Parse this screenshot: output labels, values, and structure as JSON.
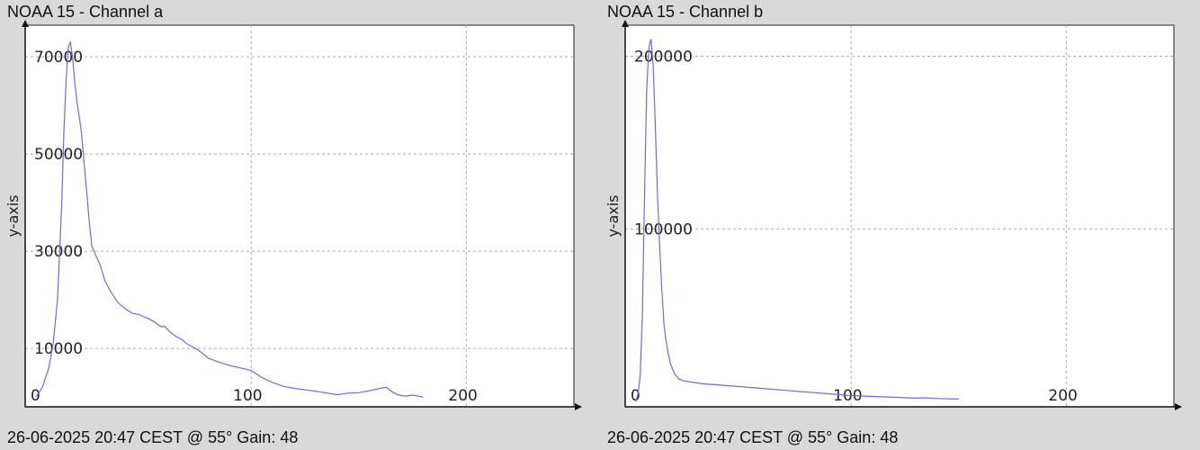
{
  "panels": [
    {
      "title": "NOAA 15 - Channel a",
      "footer": "26-06-2025 20:47 CEST @ 55° Gain: 48",
      "chart": {
        "ylabel": "y-axis",
        "xticks": [
          0,
          100,
          200
        ],
        "yticks": [
          10000,
          30000,
          50000,
          70000
        ],
        "xlim": [
          -5,
          250
        ],
        "ylim": [
          -2000,
          76500
        ]
      }
    },
    {
      "title": "NOAA 15 - Channel b",
      "footer": "26-06-2025 20:47 CEST @ 55° Gain: 48",
      "chart": {
        "ylabel": "y-axis",
        "xticks": [
          0,
          100,
          200
        ],
        "yticks": [
          100000,
          200000
        ],
        "xlim": [
          -5,
          250
        ],
        "ylim": [
          -3000,
          218000
        ]
      }
    }
  ],
  "chart_data": [
    {
      "type": "line",
      "title": "NOAA 15 - Channel a",
      "xlabel": "",
      "ylabel": "y-axis",
      "xlim": [
        -5,
        250
      ],
      "ylim": [
        -2000,
        76500
      ],
      "grid": true,
      "color": "#6a6ae6",
      "series": [
        {
          "x": [
            0,
            3,
            6,
            8,
            10,
            12,
            13,
            14,
            15,
            16,
            17,
            18,
            19,
            20,
            21,
            22,
            23,
            24,
            25,
            26,
            28,
            30,
            32,
            35,
            38,
            42,
            45,
            48,
            50,
            52,
            55,
            58,
            60,
            62,
            65,
            68,
            70,
            72,
            75,
            78,
            80,
            85,
            90,
            95,
            100,
            105,
            110,
            115,
            120,
            130,
            140,
            145,
            150,
            155,
            160,
            163,
            165,
            168,
            170,
            172,
            175,
            180
          ],
          "y": [
            0,
            2000,
            6000,
            11000,
            20000,
            40000,
            55000,
            65000,
            72000,
            73000,
            70000,
            65000,
            61000,
            58000,
            55000,
            50000,
            45000,
            40000,
            35000,
            31000,
            29000,
            27000,
            24000,
            21500,
            19500,
            18000,
            17200,
            17000,
            16500,
            16200,
            15500,
            14500,
            14500,
            13500,
            12500,
            11800,
            11000,
            10500,
            9800,
            8800,
            8000,
            7200,
            6500,
            6000,
            5500,
            4000,
            3000,
            2200,
            1800,
            1200,
            500,
            800,
            900,
            1300,
            1800,
            2000,
            1200,
            500,
            300,
            200,
            400,
            0
          ]
        }
      ]
    },
    {
      "type": "line",
      "title": "NOAA 15 - Channel b",
      "xlabel": "",
      "ylabel": "y-axis",
      "xlim": [
        -5,
        250
      ],
      "ylim": [
        -3000,
        218000
      ],
      "grid": true,
      "color": "#6a6ae6",
      "series": [
        {
          "x": [
            0,
            1,
            2,
            3,
            4,
            5,
            6,
            7,
            8,
            9,
            10,
            11,
            12,
            13,
            14,
            15,
            16,
            18,
            20,
            22,
            25,
            30,
            35,
            40,
            45,
            50,
            55,
            60,
            70,
            80,
            90,
            100,
            110,
            120,
            130,
            135,
            140,
            150
          ],
          "y": [
            0,
            5000,
            15000,
            50000,
            120000,
            180000,
            205000,
            210000,
            195000,
            160000,
            120000,
            90000,
            65000,
            45000,
            35000,
            28000,
            22000,
            16000,
            13000,
            12000,
            11500,
            10500,
            10000,
            9500,
            9000,
            8500,
            8000,
            7500,
            6500,
            5500,
            4500,
            3500,
            3000,
            2500,
            2000,
            2200,
            1800,
            1500
          ]
        }
      ]
    }
  ]
}
